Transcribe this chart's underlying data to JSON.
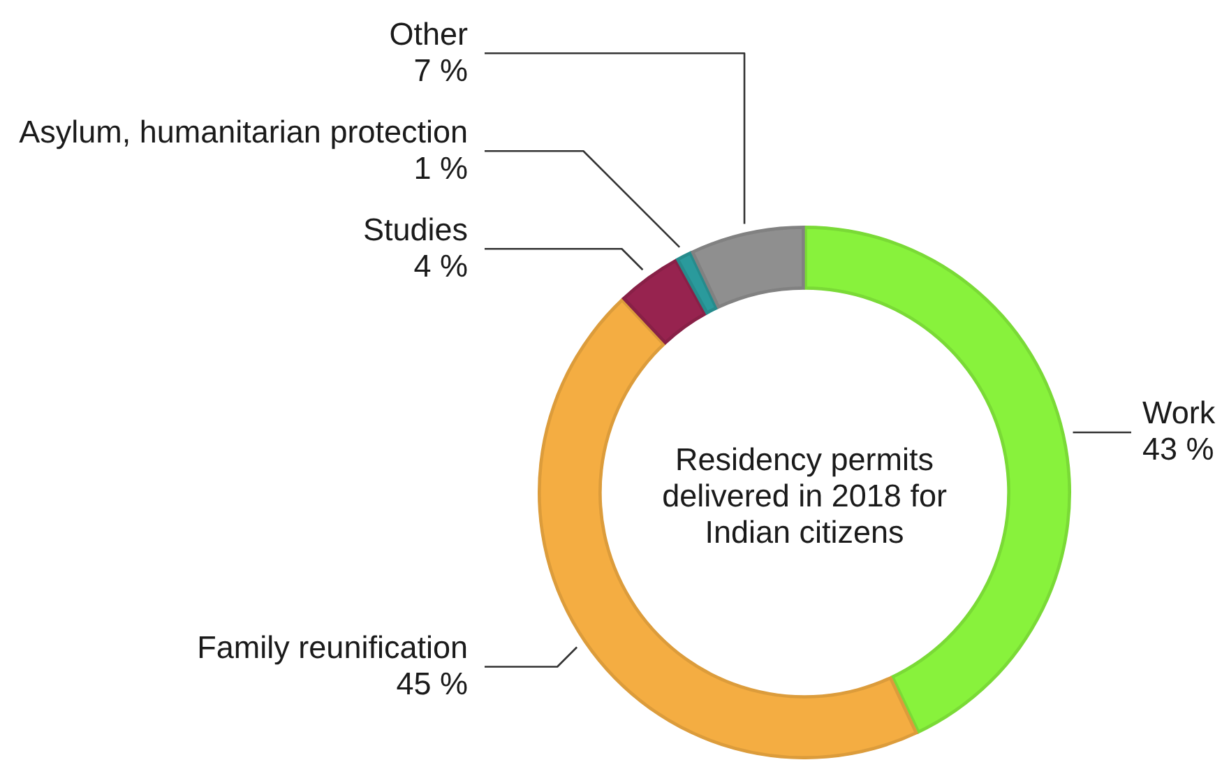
{
  "chart_data": {
    "type": "donut",
    "title": "Residency permits delivered in 2018 for Indian citizens",
    "categories": [
      "Work",
      "Family reunification",
      "Studies",
      "Asylum, humanitarian protection",
      "Other"
    ],
    "values": [
      43,
      45,
      4,
      1,
      7
    ],
    "colors": [
      "#88f23c",
      "#f4ad42",
      "#97234f",
      "#2a9a9c",
      "#8f8f8f"
    ],
    "value_labels": [
      "43 %",
      "45 %",
      "4 %",
      "1 %",
      "7 %"
    ]
  }
}
